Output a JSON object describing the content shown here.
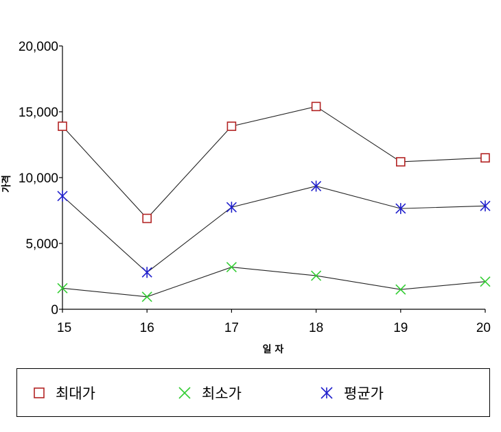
{
  "chart_data": {
    "type": "line",
    "title": "",
    "xlabel": "일 자",
    "ylabel": "가격",
    "x": [
      "15",
      "16",
      "17",
      "18",
      "19",
      "20"
    ],
    "ylim": [
      0,
      20000
    ],
    "yticks": [
      "0",
      "5,000",
      "10,000",
      "15,000",
      "20,000"
    ],
    "yticks_values": [
      0,
      5000,
      10000,
      15000,
      20000
    ],
    "grid": false,
    "legend_position": "bottom",
    "series": [
      {
        "name": "최대가",
        "marker": "square",
        "color": "#b22222",
        "values": [
          13900,
          6900,
          13900,
          15400,
          11200,
          11500
        ]
      },
      {
        "name": "최소가",
        "marker": "x",
        "color": "#32cd32",
        "values": [
          1600,
          950,
          3200,
          2550,
          1500,
          2100
        ]
      },
      {
        "name": "평균가",
        "marker": "asterisk",
        "color": "#1f1fcc",
        "values": [
          8600,
          2800,
          7750,
          9350,
          7650,
          7850
        ]
      }
    ]
  }
}
